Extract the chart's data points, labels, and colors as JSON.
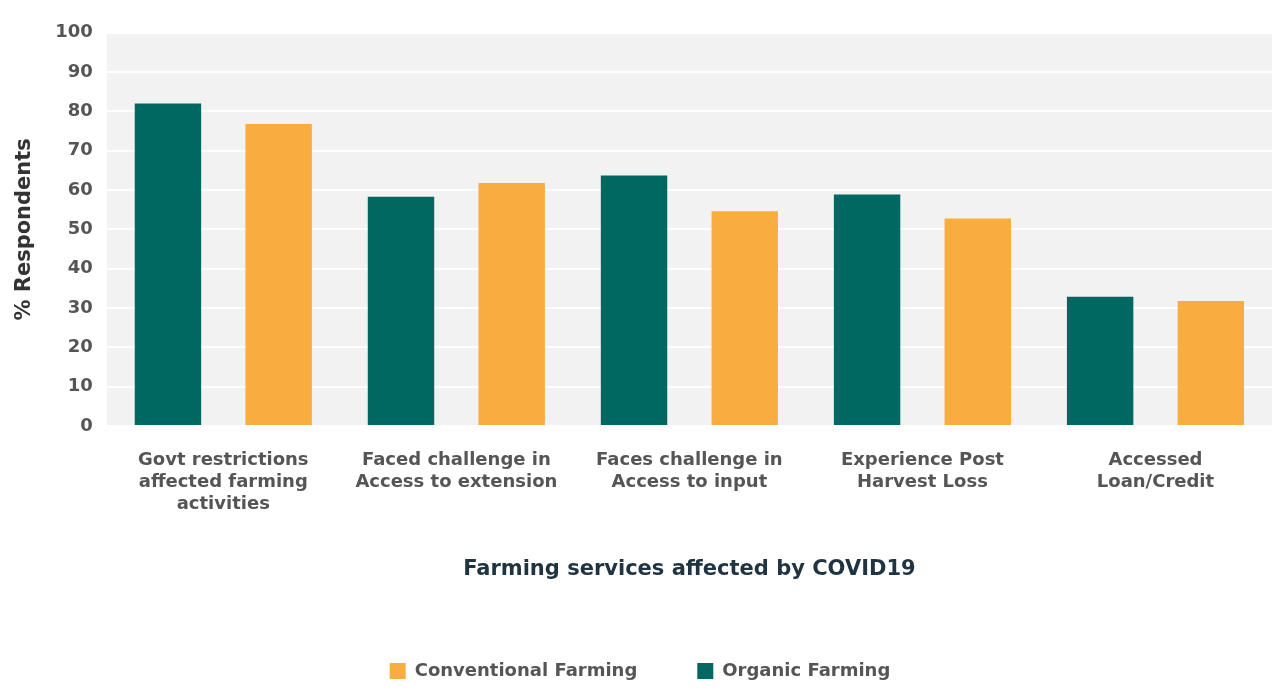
{
  "chart_data": {
    "type": "bar",
    "xlabel": "Farming services affected by COVID19",
    "ylabel": "% Respondents",
    "categories": [
      "Govt restrictions affected farming activities",
      "Faced challenge in Access to extension",
      "Faces challenge in Access to input",
      "Experience Post Harvest Loss",
      "Accessed Loan/Credit"
    ],
    "series": [
      {
        "name": "Organic Farming",
        "color": "#006860",
        "values": [
          82,
          58.3,
          63.7,
          58.9,
          32.9
        ]
      },
      {
        "name": "Conventional Farming",
        "color": "#f9ad3e",
        "values": [
          76.8,
          61.8,
          54.6,
          52.8,
          31.8
        ]
      }
    ],
    "ylim": [
      0,
      100
    ],
    "yticks": [
      0,
      10,
      20,
      30,
      40,
      50,
      60,
      70,
      80,
      90,
      100
    ],
    "grid": "y",
    "legend": "bottom"
  }
}
